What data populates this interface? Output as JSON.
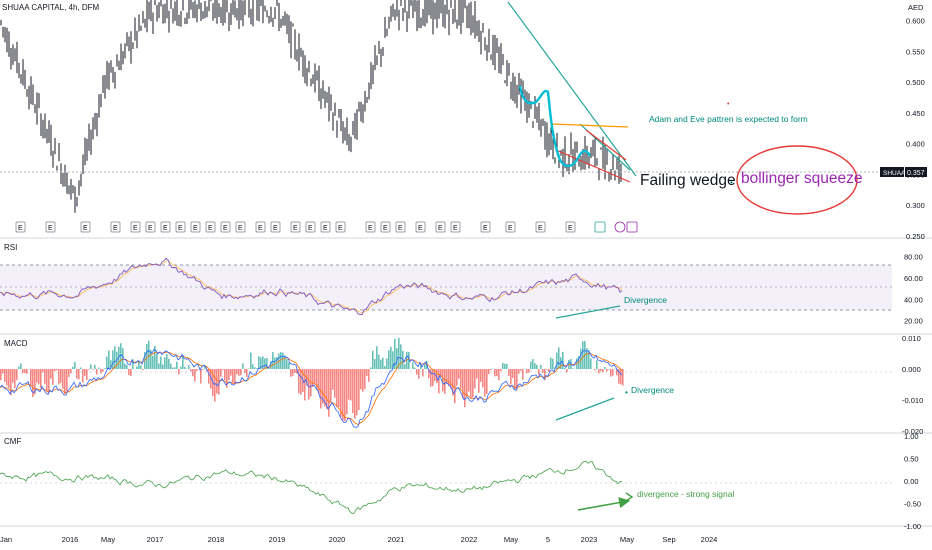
{
  "header": {
    "symbol_title": "SHUAA CAPITAL, 4h, DFM",
    "currency": "AED"
  },
  "price_pane": {
    "y_ticks": [
      "0.600",
      "0.550",
      "0.500",
      "0.450",
      "0.400",
      "0.350",
      "0.300",
      "0.250"
    ],
    "last_price_label": "SHUAA",
    "last_price": "0.357",
    "ylim": [
      0.25,
      0.63
    ]
  },
  "annotations": {
    "adam_eve": "Adam and Eve pattren is expected to form",
    "falling_wedge": "Failing wedge",
    "bollinger": "bollinger squeeze",
    "rsi_divergence": "Divergence",
    "macd_divergence": "Divergence",
    "cmf_divergence": "divergence - strong signal"
  },
  "event_markers": [
    "E",
    "E",
    "E",
    "E",
    "E",
    "E",
    "E",
    "E",
    "E",
    "E",
    "E",
    "E",
    "E",
    "E",
    "E",
    "E",
    "E",
    "E",
    "E",
    "E",
    "E",
    "E",
    "E",
    "E",
    "E",
    "E",
    "E",
    "E"
  ],
  "rsi_pane": {
    "label": "RSI",
    "y_ticks": [
      "80.00",
      "60.00",
      "40.00",
      "20.00"
    ]
  },
  "macd_pane": {
    "label": "MACD",
    "y_ticks": [
      "0.010",
      "0.000",
      "-0.010",
      "-0.020"
    ]
  },
  "cmf_pane": {
    "label": "CMF",
    "y_ticks": [
      "1.00",
      "0.50",
      "0.00",
      "-0.50",
      "-1.00"
    ]
  },
  "x_axis": {
    "labels": [
      "Jan",
      "2016",
      "May",
      "2017",
      "2018",
      "2019",
      "2020",
      "2021",
      "2022",
      "May",
      "5",
      "2023",
      "May",
      "Sep",
      "2024"
    ]
  },
  "colors": {
    "candles": "#131722",
    "wedge_upper": "#26a69a",
    "wedge_lower": "#e53935",
    "adam_eve_line": "#ff9800",
    "bollinger_text": "#9c27b0",
    "circle": "#e53935",
    "rsi_line": "#7e57c2",
    "rsi_signal": "#ffb74d",
    "macd_up": "#26a69a",
    "macd_down": "#ef5350",
    "macd_line": "#2962ff",
    "signal_line": "#ff6d00",
    "cmf_line": "#43a047",
    "annotation_teal": "#00897b"
  },
  "chart_data": [
    {
      "type": "line",
      "title": "SHUAA CAPITAL, 4h, DFM",
      "ylabel": "AED",
      "ylim": [
        0.25,
        0.63
      ],
      "series": [
        {
          "name": "SHUAA",
          "x": [
            "Jan 2016",
            "2016",
            "May 2016",
            "2017",
            "2018",
            "2019",
            "2020",
            "2021",
            "2022",
            "May 2022",
            "Sep 2022",
            "2023",
            "May 2023"
          ],
          "values": [
            0.6,
            0.31,
            0.5,
            0.62,
            0.62,
            0.62,
            0.4,
            0.62,
            0.61,
            0.52,
            0.38,
            0.38,
            0.357
          ]
        }
      ]
    },
    {
      "type": "line",
      "title": "RSI",
      "ylim": [
        15,
        88
      ],
      "series": [
        {
          "x": [
            "2016",
            "2017",
            "2018",
            "2019",
            "2020",
            "2021",
            "2022",
            "2023",
            "May 2023"
          ],
          "values": [
            45,
            80,
            42,
            50,
            25,
            55,
            40,
            60,
            42
          ]
        }
      ]
    },
    {
      "type": "bar",
      "title": "MACD",
      "ylim": [
        -0.02,
        0.01
      ],
      "series": [
        {
          "x": [
            "2016",
            "2017",
            "2018",
            "2019",
            "2020",
            "2021",
            "2022",
            "2023",
            "May 2023"
          ],
          "values": [
            -0.006,
            0.008,
            -0.004,
            0.003,
            -0.018,
            0.006,
            -0.01,
            0.004,
            -0.002
          ]
        }
      ]
    },
    {
      "type": "line",
      "title": "CMF",
      "ylim": [
        -1.0,
        1.0
      ],
      "series": [
        {
          "x": [
            "2016",
            "2017",
            "2018",
            "2019",
            "2020",
            "2021",
            "2022",
            "2023",
            "May 2023"
          ],
          "values": [
            0.1,
            -0.1,
            0.2,
            0.05,
            -0.7,
            -0.1,
            -0.2,
            0.4,
            -0.1
          ]
        }
      ]
    }
  ]
}
